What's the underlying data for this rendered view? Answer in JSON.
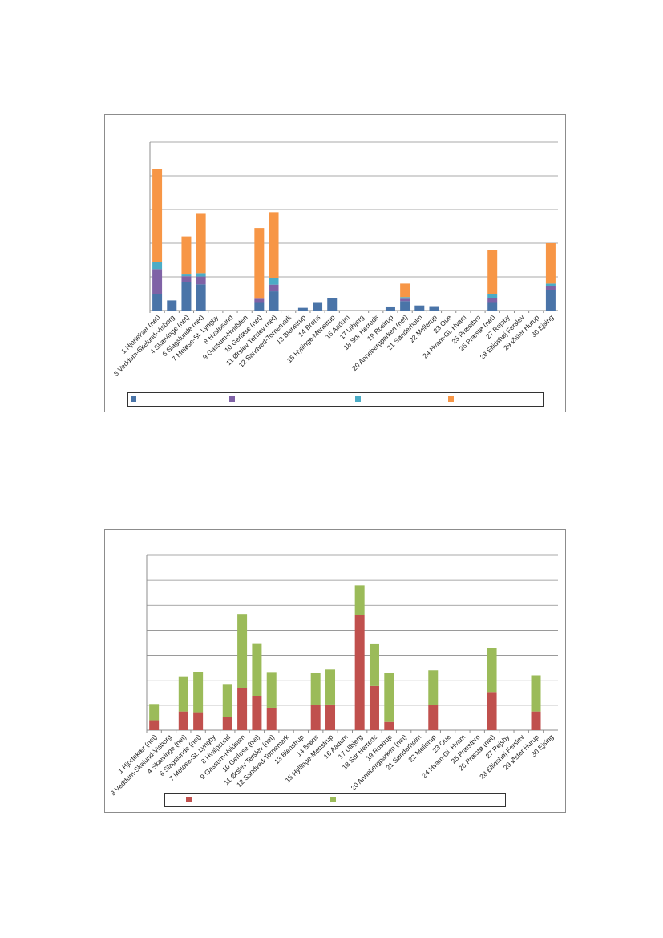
{
  "chart_data": [
    {
      "type": "bar",
      "stacked": true,
      "title": "",
      "xlabel": "",
      "ylabel": "",
      "grid": true,
      "legend_position": "bottom",
      "categories": [
        "1 Hjortekær (net)",
        "3 Veddum-Skelund-Visborg",
        "4 Skævinge (net)",
        "6 Slagslunde (net)",
        "7 Meløse-St. Lyngby",
        "8 Hvalpsund",
        "9 Gassum-Hvidsten",
        "10 Gerløse (net)",
        "11 Ørslev Terslev (net)",
        "12 Sandved-Tornemark",
        "13 Blenstrup",
        "14 Brøns",
        "15 Hyllinge-Menstrup",
        "16 Aadum",
        "17 Ulbjerg",
        "18 Sdr Herreds",
        "19 Rostrup",
        "20 Annebergparken (net)",
        "21 Sønderholm",
        "22 Mellerup",
        "23 Oue",
        "24 Hvam-Gl. Hvam",
        "25 Præstbro",
        "26 Præstø (net)",
        "27 Rejsby",
        "28 Ellidshøj Ferslev",
        "29 Øster Hurup",
        "30 Ejsing"
      ],
      "ylim": [
        0,
        5
      ],
      "series": [
        {
          "color": "#4a74a8",
          "values": [
            0.5,
            0.3,
            0.85,
            0.78,
            0,
            0,
            0,
            0.25,
            0.57,
            0,
            0.08,
            0.25,
            0.37,
            0,
            0,
            0,
            0.12,
            0.28,
            0.15,
            0.13,
            0,
            0,
            0,
            0.25,
            0,
            0,
            0,
            0.6
          ]
        },
        {
          "color": "#7f62a6",
          "values": [
            0.73,
            0,
            0.17,
            0.23,
            0,
            0,
            0,
            0.1,
            0.2,
            0,
            0,
            0,
            0,
            0,
            0,
            0,
            0,
            0.07,
            0,
            0,
            0,
            0,
            0,
            0.12,
            0,
            0,
            0,
            0.12
          ]
        },
        {
          "color": "#4bacc6",
          "values": [
            0.22,
            0,
            0.05,
            0.1,
            0,
            0,
            0,
            0,
            0.2,
            0,
            0,
            0,
            0,
            0,
            0,
            0,
            0,
            0.05,
            0,
            0,
            0,
            0,
            0,
            0.12,
            0,
            0,
            0,
            0.08
          ]
        },
        {
          "color": "#f79646",
          "values": [
            2.75,
            0,
            1.13,
            1.76,
            0,
            0,
            0,
            2.1,
            1.95,
            0,
            0,
            0,
            0,
            0,
            0,
            0,
            0,
            0.4,
            0,
            0,
            0,
            0,
            0,
            1.31,
            0,
            0,
            0,
            1.2
          ]
        }
      ]
    },
    {
      "type": "bar",
      "stacked": true,
      "title": "",
      "xlabel": "",
      "ylabel": "",
      "grid": true,
      "legend_position": "bottom",
      "categories": [
        "1 Hjortekær (net)",
        "3 Veddum-Skelund-Visborg",
        "4 Skævinge (net)",
        "6 Slagslunde (net)",
        "7 Meløse-St. Lyngby",
        "8 Hvalpsund",
        "9 Gassum-Hvidsten",
        "10 Gerløse (net)",
        "11 Ørslev Terslev (net)",
        "12 Sandved-Tornemark",
        "13 Blenstrup",
        "14 Brøns",
        "15 Hyllinge-Menstrup",
        "16 Aadum",
        "17 Ulbjerg",
        "18 Sdr Herreds",
        "19 Rostrup",
        "20 Annebergparken (net)",
        "21 Sønderholm",
        "22 Mellerup",
        "23 Oue",
        "24 Hvam-Gl. Hvam",
        "25 Præstbro",
        "26 Præstø (net)",
        "27 Rejsby",
        "28 Ellidshøj Ferslev",
        "29 Øster Hurup",
        "30 Ejsing"
      ],
      "ylim": [
        0,
        7
      ],
      "series": [
        {
          "color": "#c0504d",
          "values": [
            0.4,
            0,
            0.75,
            0.72,
            0,
            0.52,
            1.7,
            1.38,
            0.9,
            0,
            0,
            1.0,
            1.03,
            0,
            4.6,
            1.77,
            0.33,
            0,
            0,
            1.0,
            0,
            0,
            0,
            1.5,
            0,
            0,
            0.75,
            0
          ]
        },
        {
          "color": "#9bbb59",
          "values": [
            0.65,
            0,
            1.38,
            1.6,
            0,
            1.3,
            2.95,
            2.1,
            1.4,
            0,
            0,
            1.28,
            1.4,
            0,
            1.2,
            1.7,
            1.95,
            0,
            0,
            1.4,
            0,
            0,
            0,
            1.8,
            0,
            0,
            1.45,
            0
          ]
        }
      ]
    }
  ]
}
